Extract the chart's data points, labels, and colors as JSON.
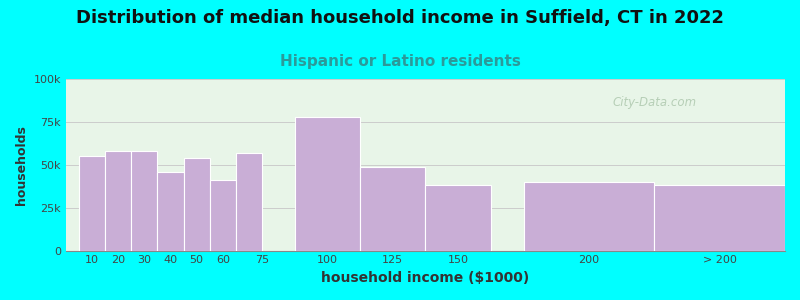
{
  "title": "Distribution of median household income in Suffield, CT in 2022",
  "subtitle": "Hispanic or Latino residents",
  "xlabel": "household income ($1000)",
  "ylabel": "households",
  "background_color": "#00FFFF",
  "bar_color": "#c9aed6",
  "bar_edge_color": "#ffffff",
  "categories": [
    "10",
    "20",
    "30",
    "40",
    "50",
    "60",
    "75",
    "100",
    "125",
    "150",
    "200",
    "> 200"
  ],
  "bar_lefts": [
    5,
    15,
    25,
    35,
    45,
    55,
    65,
    87.5,
    112.5,
    137.5,
    175,
    225
  ],
  "bar_widths": [
    10,
    10,
    10,
    10,
    10,
    10,
    10,
    25,
    25,
    25,
    50,
    50
  ],
  "bar_xticks": [
    10,
    20,
    30,
    40,
    50,
    60,
    75,
    100,
    125,
    150,
    200,
    250
  ],
  "xtick_labels": [
    "10",
    "20",
    "30",
    "40",
    "50",
    "60",
    "75",
    "100",
    "125",
    "150",
    "200",
    "> 200"
  ],
  "values": [
    55000,
    58000,
    58000,
    46000,
    54000,
    41000,
    57000,
    78000,
    49000,
    38000,
    40000,
    38000
  ],
  "ylim": [
    0,
    100000
  ],
  "yticks": [
    0,
    25000,
    50000,
    75000,
    100000
  ],
  "ytick_labels": [
    "0",
    "25k",
    "50k",
    "75k",
    "100k"
  ],
  "xlim": [
    0,
    275
  ],
  "title_fontsize": 13,
  "subtitle_fontsize": 11,
  "subtitle_color": "#2b9a9a",
  "ylabel_fontsize": 9,
  "xlabel_fontsize": 10,
  "watermark_text": "City-Data.com",
  "watermark_color": "#aec8ae",
  "grid_color": "#cccccc",
  "plot_bg_top": "#e8f5e8",
  "plot_bg_bottom": "#f8fff8"
}
